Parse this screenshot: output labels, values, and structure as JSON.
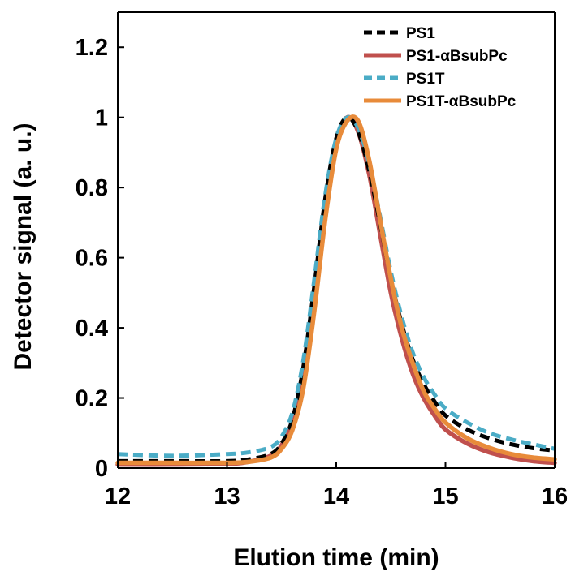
{
  "chart_data": {
    "type": "line",
    "title": "",
    "xlabel": "Elution time (min)",
    "ylabel": "Detector signal (a. u.)",
    "xlim": [
      12,
      16
    ],
    "ylim": [
      0,
      1.3
    ],
    "xticks": [
      12,
      13,
      14,
      15,
      16
    ],
    "xtick_labels": [
      "12",
      "13",
      "14",
      "15",
      "16"
    ],
    "yticks": [
      0,
      0.2,
      0.4,
      0.6,
      0.8,
      1,
      1.2
    ],
    "ytick_labels": [
      "0",
      "0.2",
      "0.4",
      "0.6",
      "0.8",
      "1",
      "1.2"
    ],
    "grid": false,
    "legend_position": "top-right",
    "x": [
      12.0,
      12.5,
      13.0,
      13.2,
      13.4,
      13.5,
      13.6,
      13.7,
      13.8,
      13.9,
      14.0,
      14.1,
      14.2,
      14.3,
      14.4,
      14.5,
      14.6,
      14.7,
      14.8,
      14.9,
      15.0,
      15.2,
      15.4,
      15.6,
      15.8,
      16.0
    ],
    "series": [
      {
        "name": "PS1",
        "color": "#000000",
        "dash": "dashed",
        "values": [
          0.02,
          0.02,
          0.02,
          0.025,
          0.04,
          0.07,
          0.14,
          0.29,
          0.52,
          0.77,
          0.94,
          1.0,
          0.96,
          0.85,
          0.7,
          0.54,
          0.41,
          0.31,
          0.24,
          0.19,
          0.15,
          0.11,
          0.085,
          0.068,
          0.057,
          0.05
        ]
      },
      {
        "name": "PS1-αBsubPc",
        "color": "#c0504d",
        "dash": "solid",
        "values": [
          0.01,
          0.01,
          0.012,
          0.018,
          0.035,
          0.065,
          0.13,
          0.27,
          0.5,
          0.75,
          0.93,
          1.0,
          0.96,
          0.84,
          0.67,
          0.5,
          0.37,
          0.27,
          0.2,
          0.15,
          0.11,
          0.07,
          0.045,
          0.03,
          0.02,
          0.015
        ]
      },
      {
        "name": "PS1T",
        "color": "#4bacc6",
        "dash": "dashed",
        "values": [
          0.04,
          0.035,
          0.04,
          0.045,
          0.06,
          0.09,
          0.16,
          0.31,
          0.54,
          0.78,
          0.94,
          1.0,
          0.97,
          0.87,
          0.72,
          0.56,
          0.43,
          0.33,
          0.26,
          0.21,
          0.17,
          0.13,
          0.1,
          0.082,
          0.068,
          0.055
        ]
      },
      {
        "name": "PS1T-αBsubPc",
        "color": "#e88b3a",
        "dash": "solid",
        "values": [
          0.015,
          0.015,
          0.015,
          0.018,
          0.03,
          0.055,
          0.11,
          0.23,
          0.45,
          0.71,
          0.91,
          0.99,
          0.99,
          0.88,
          0.71,
          0.54,
          0.4,
          0.3,
          0.22,
          0.17,
          0.13,
          0.085,
          0.058,
          0.04,
          0.03,
          0.025
        ]
      }
    ]
  }
}
